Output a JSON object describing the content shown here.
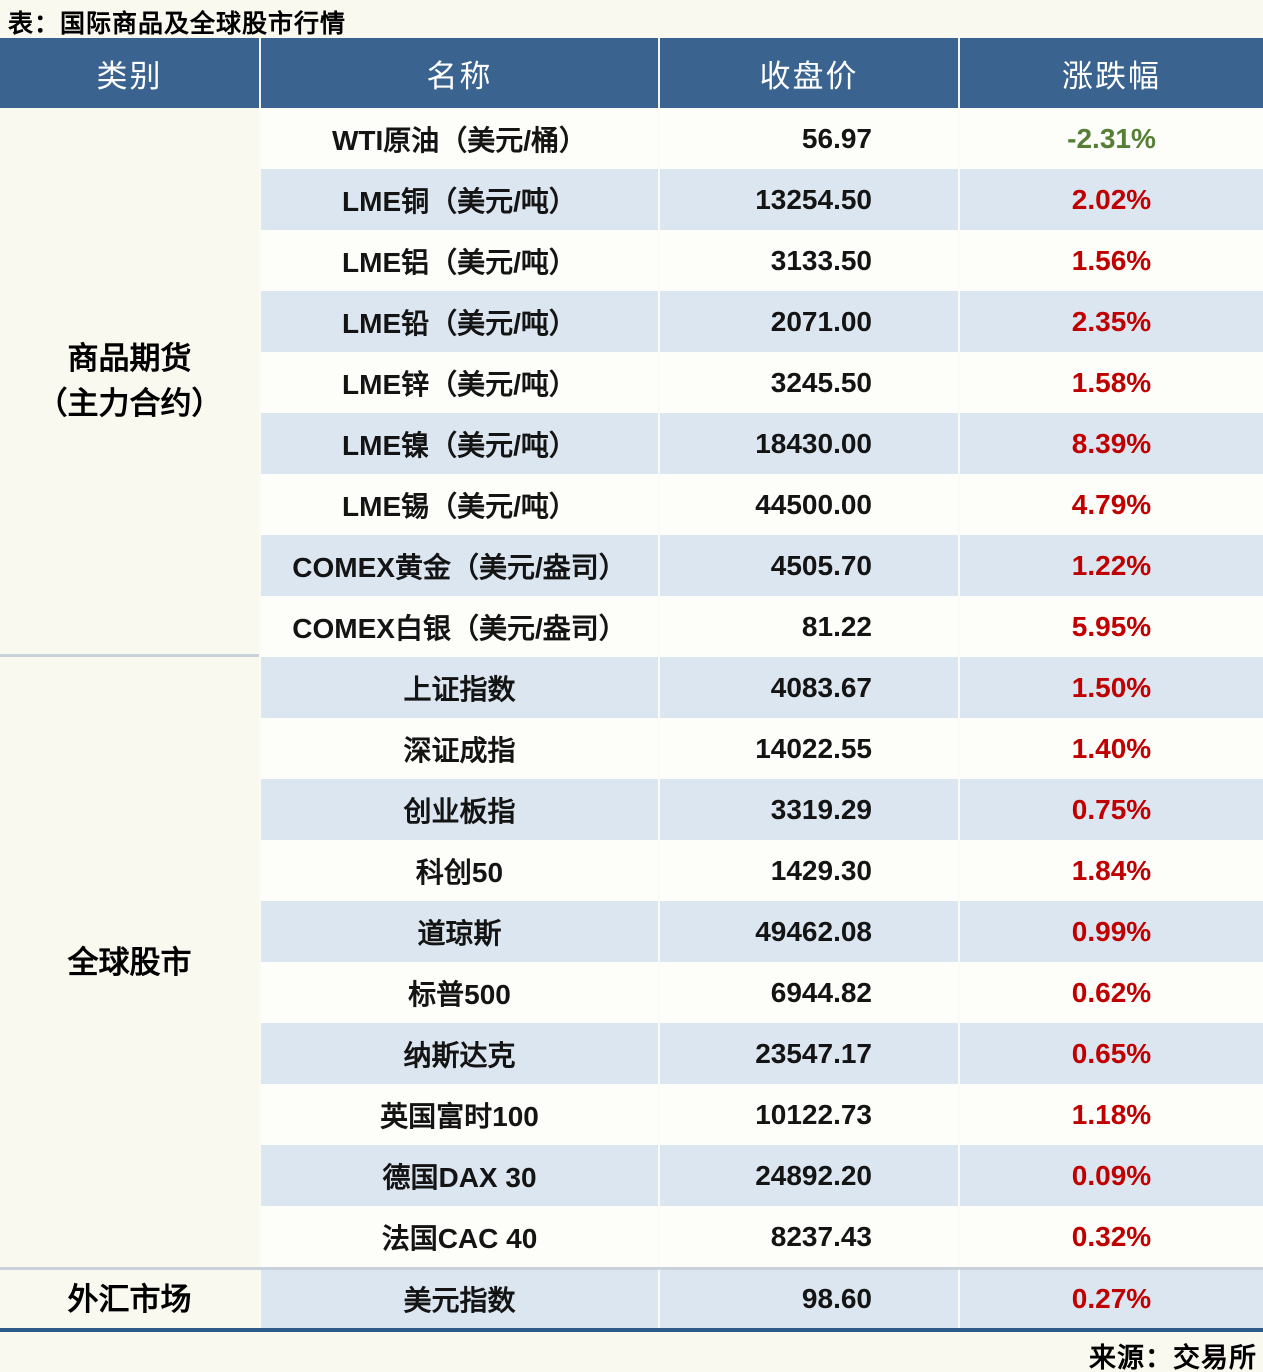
{
  "title": "表：国际商品及全球股市行情",
  "source": "来源：交易所",
  "header": {
    "category": "类别",
    "name": "名称",
    "close": "收盘价",
    "change": "涨跌幅"
  },
  "categories": {
    "commodities": {
      "line1": "商品期货",
      "line2": "（主力合约）"
    },
    "stocks": {
      "label": "全球股市"
    },
    "fx": {
      "label": "外汇市场"
    }
  },
  "colors": {
    "header_bg": "#3A6390",
    "stripe_bg": "#DCE6F1",
    "up": "#C00000",
    "down": "#567F35",
    "bottom_rule": "#2E5C88",
    "page_bg": "#FAF9F0"
  },
  "rows": [
    {
      "name": "WTI原油（美元/桶）",
      "close": "56.97",
      "change": "-2.31%",
      "direction": "down"
    },
    {
      "name": "LME铜（美元/吨）",
      "close": "13254.50",
      "change": "2.02%",
      "direction": "up"
    },
    {
      "name": "LME铝（美元/吨）",
      "close": "3133.50",
      "change": "1.56%",
      "direction": "up"
    },
    {
      "name": "LME铅（美元/吨）",
      "close": "2071.00",
      "change": "2.35%",
      "direction": "up"
    },
    {
      "name": "LME锌（美元/吨）",
      "close": "3245.50",
      "change": "1.58%",
      "direction": "up"
    },
    {
      "name": "LME镍（美元/吨）",
      "close": "18430.00",
      "change": "8.39%",
      "direction": "up"
    },
    {
      "name": "LME锡（美元/吨）",
      "close": "44500.00",
      "change": "4.79%",
      "direction": "up"
    },
    {
      "name": "COMEX黄金（美元/盎司）",
      "close": "4505.70",
      "change": "1.22%",
      "direction": "up"
    },
    {
      "name": "COMEX白银（美元/盎司）",
      "close": "81.22",
      "change": "5.95%",
      "direction": "up"
    },
    {
      "name": "上证指数",
      "close": "4083.67",
      "change": "1.50%",
      "direction": "up"
    },
    {
      "name": "深证成指",
      "close": "14022.55",
      "change": "1.40%",
      "direction": "up"
    },
    {
      "name": "创业板指",
      "close": "3319.29",
      "change": "0.75%",
      "direction": "up"
    },
    {
      "name": "科创50",
      "close": "1429.30",
      "change": "1.84%",
      "direction": "up"
    },
    {
      "name": "道琼斯",
      "close": "49462.08",
      "change": "0.99%",
      "direction": "up"
    },
    {
      "name": "标普500",
      "close": "6944.82",
      "change": "0.62%",
      "direction": "up"
    },
    {
      "name": "纳斯达克",
      "close": "23547.17",
      "change": "0.65%",
      "direction": "up"
    },
    {
      "name": "英国富时100",
      "close": "10122.73",
      "change": "1.18%",
      "direction": "up"
    },
    {
      "name": "德国DAX 30",
      "close": "24892.20",
      "change": "0.09%",
      "direction": "up"
    },
    {
      "name": "法国CAC 40",
      "close": "8237.43",
      "change": "0.32%",
      "direction": "up"
    },
    {
      "name": "美元指数",
      "close": "98.60",
      "change": "0.27%",
      "direction": "up"
    }
  ]
}
